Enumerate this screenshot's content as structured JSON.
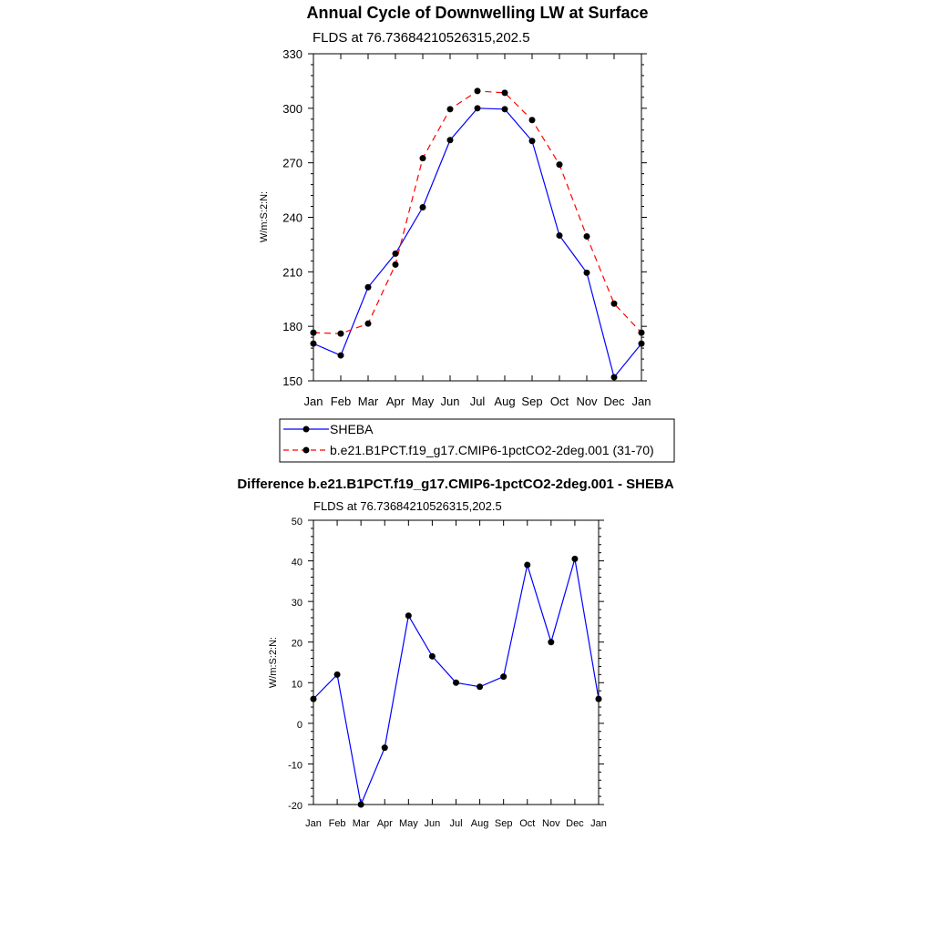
{
  "chart_data": [
    {
      "type": "line",
      "title": "Annual Cycle of Downwelling LW at Surface",
      "subtitle": "FLDS at 76.73684210526315,202.5",
      "xlabel": "",
      "ylabel": "W/m:S:2:N:",
      "categories": [
        "Jan",
        "Feb",
        "Mar",
        "Apr",
        "May",
        "Jun",
        "Jul",
        "Aug",
        "Sep",
        "Oct",
        "Nov",
        "Dec",
        "Jan"
      ],
      "ylim": [
        150,
        330
      ],
      "yticks": [
        150,
        180,
        210,
        240,
        270,
        300,
        330
      ],
      "grid": false,
      "legend_placement": "bottom",
      "series": [
        {
          "name": "SHEBA",
          "color": "#0000ff",
          "dash": "solid",
          "values": [
            170.5,
            164,
            201.5,
            220,
            245.5,
            282.5,
            300,
            299.5,
            282,
            230,
            209.5,
            152,
            170.5
          ]
        },
        {
          "name": "b.e21.B1PCT.f19_g17.CMIP6-1pctCO2-2deg.001 (31-70)",
          "color": "#ff0000",
          "dash": "dashed",
          "values": [
            176.5,
            176,
            181.5,
            214,
            272.5,
            299.5,
            309.5,
            308.5,
            293.5,
            269,
            229.5,
            192.5,
            176.5
          ]
        }
      ]
    },
    {
      "type": "line",
      "title": "Difference b.e21.B1PCT.f19_g17.CMIP6-1pctCO2-2deg.001 - SHEBA",
      "subtitle": "FLDS at 76.73684210526315,202.5",
      "xlabel": "",
      "ylabel": "W/m:S:2:N:",
      "categories": [
        "Jan",
        "Feb",
        "Mar",
        "Apr",
        "May",
        "Jun",
        "Jul",
        "Aug",
        "Sep",
        "Oct",
        "Nov",
        "Dec",
        "Jan"
      ],
      "ylim": [
        -20,
        50
      ],
      "yticks": [
        -20,
        -10,
        0,
        10,
        20,
        30,
        40,
        50
      ],
      "grid": false,
      "series": [
        {
          "color": "#0000ff",
          "dash": "solid",
          "values": [
            6,
            12,
            -20,
            -6,
            26.5,
            16.5,
            10,
            9,
            11.5,
            39,
            20,
            40.5,
            6
          ]
        }
      ]
    }
  ]
}
